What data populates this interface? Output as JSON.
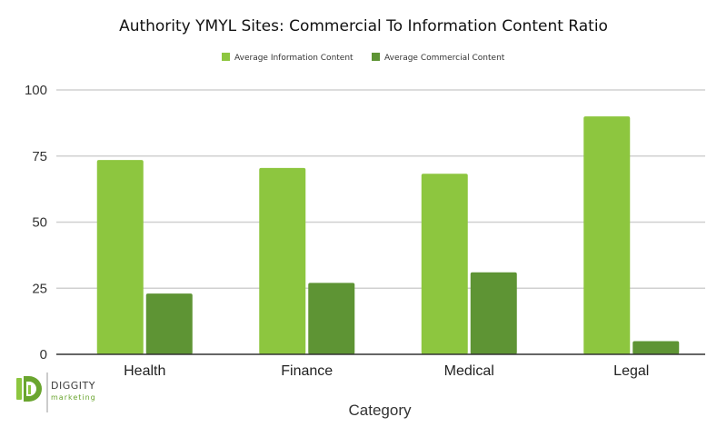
{
  "chart_data": {
    "type": "bar",
    "title": "Authority YMYL Sites: Commercial To Information Content Ratio",
    "xlabel": "Category",
    "ylabel": "",
    "categories": [
      "Health",
      "Finance",
      "Medical",
      "Legal"
    ],
    "series": [
      {
        "name": "Average Information Content",
        "color": "#8dc63f",
        "values": [
          73.5,
          70.5,
          68.3,
          90
        ]
      },
      {
        "name": "Average Commercial Content",
        "color": "#5e9434",
        "values": [
          23,
          27,
          31,
          5
        ]
      }
    ],
    "ylim": [
      0,
      100
    ],
    "yticks": [
      0,
      25,
      50,
      75,
      100
    ],
    "grid": true,
    "legend": "top-center"
  },
  "logo": {
    "name": "DIGGITY",
    "tagline": "marketing",
    "icon": "diggity-d-logo-icon"
  }
}
